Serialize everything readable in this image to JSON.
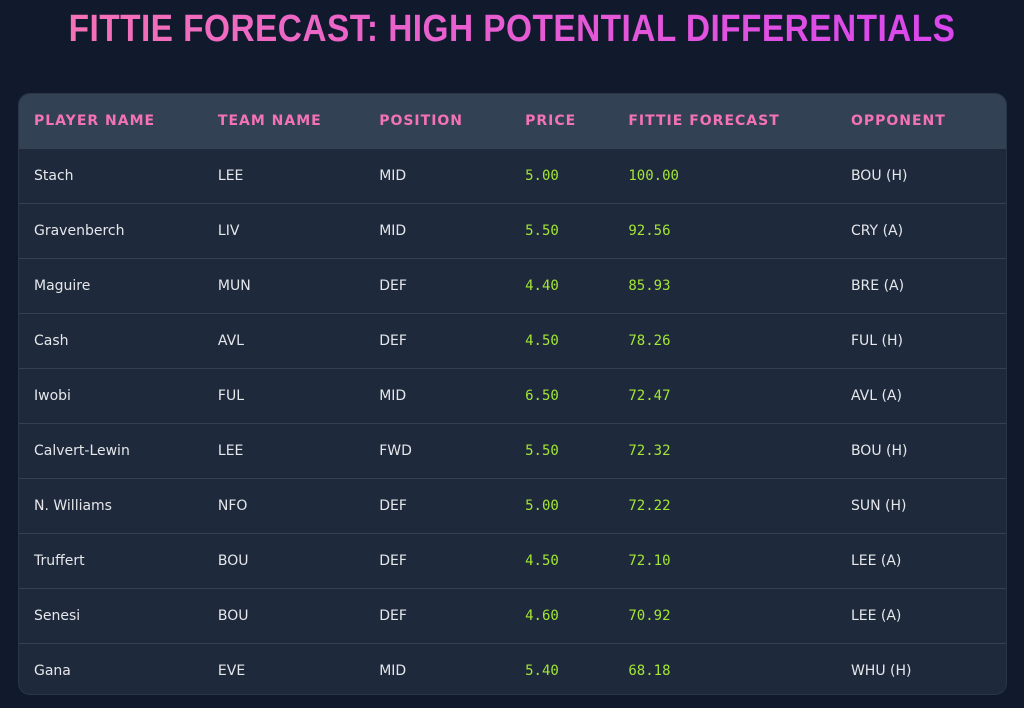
{
  "header": {
    "title": "FITTIE FORECAST: HIGH POTENTIAL DIFFERENTIALS"
  },
  "table": {
    "columns": [
      "PLAYER NAME",
      "TEAM NAME",
      "POSITION",
      "PRICE",
      "FITTIE FORECAST",
      "OPPONENT"
    ],
    "rows": [
      [
        "Stach",
        "LEE",
        "MID",
        "5.00",
        "100.00",
        "BOU (H)"
      ],
      [
        "Gravenberch",
        "LIV",
        "MID",
        "5.50",
        "92.56",
        "CRY (A)"
      ],
      [
        "Maguire",
        "MUN",
        "DEF",
        "4.40",
        "85.93",
        "BRE (A)"
      ],
      [
        "Cash",
        "AVL",
        "DEF",
        "4.50",
        "78.26",
        "FUL (H)"
      ],
      [
        "Iwobi",
        "FUL",
        "MID",
        "6.50",
        "72.47",
        "AVL (A)"
      ],
      [
        "Calvert-Lewin",
        "LEE",
        "FWD",
        "5.50",
        "72.32",
        "BOU (H)"
      ],
      [
        "N. Williams",
        "NFO",
        "DEF",
        "5.00",
        "72.22",
        "SUN (H)"
      ],
      [
        "Truffert",
        "BOU",
        "DEF",
        "4.50",
        "72.10",
        "LEE (A)"
      ],
      [
        "Senesi",
        "BOU",
        "DEF",
        "4.60",
        "70.92",
        "LEE (A)"
      ],
      [
        "Gana",
        "EVE",
        "MID",
        "5.40",
        "68.18",
        "WHU (H)"
      ]
    ]
  }
}
